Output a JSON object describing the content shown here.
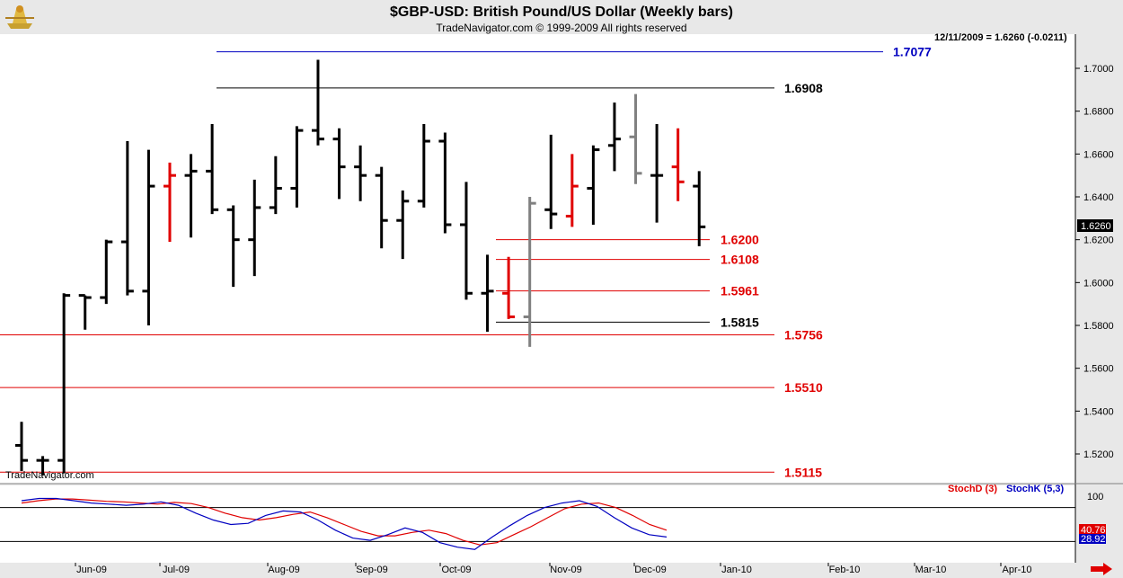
{
  "header": {
    "title": "$GBP-USD:  British Pound/US Dollar  (Weekly bars)",
    "subtitle": "TradeNavigator.com © 1999-2009 All rights reserved",
    "stamp": "12/11/2009 = 1.6260 (-0.0211)"
  },
  "watermark": "TradeNavigator.com",
  "colors": {
    "up_bar": "#000000",
    "down_bar": "#e00000",
    "gray_bar": "#808080",
    "support_line": "#e00000",
    "blue_line": "#0000c0",
    "stochD": "#e00000",
    "stochK": "#0000c0"
  },
  "chart_data": {
    "type": "bar",
    "instrument": "$GBP-USD",
    "ylim": [
      1.51,
      1.71
    ],
    "yticks": [
      "1.7000",
      "1.6800",
      "1.6600",
      "1.6400",
      "1.6200",
      "1.6000",
      "1.5800",
      "1.5600",
      "1.5400",
      "1.5200"
    ],
    "x_labels": [
      "Jun-09",
      "Jul-09",
      "Aug-09",
      "Sep-09",
      "Oct-09",
      "Nov-09",
      "Dec-09",
      "Jan-10",
      "Feb-10",
      "Mar-10",
      "Apr-10"
    ],
    "last_price_label": "1.6260",
    "bars": [
      {
        "date": "2009-05-01",
        "open": 1.524,
        "high": 1.535,
        "low": 1.512,
        "close": 1.517,
        "color": "black"
      },
      {
        "date": "2009-05-08",
        "open": 1.517,
        "high": 1.519,
        "low": 1.51,
        "close": 1.517,
        "color": "black"
      },
      {
        "date": "2009-05-15",
        "open": 1.517,
        "high": 1.595,
        "low": 1.511,
        "close": 1.594,
        "color": "black"
      },
      {
        "date": "2009-05-22",
        "open": 1.594,
        "high": 1.594,
        "low": 1.578,
        "close": 1.593,
        "color": "black"
      },
      {
        "date": "2009-05-29",
        "open": 1.593,
        "high": 1.62,
        "low": 1.59,
        "close": 1.619,
        "color": "black"
      },
      {
        "date": "2009-06-05",
        "open": 1.619,
        "high": 1.666,
        "low": 1.594,
        "close": 1.596,
        "color": "black"
      },
      {
        "date": "2009-06-12",
        "open": 1.596,
        "high": 1.662,
        "low": 1.58,
        "close": 1.645,
        "color": "black"
      },
      {
        "date": "2009-06-19",
        "open": 1.645,
        "high": 1.656,
        "low": 1.619,
        "close": 1.65,
        "color": "red"
      },
      {
        "date": "2009-06-26",
        "open": 1.65,
        "high": 1.66,
        "low": 1.621,
        "close": 1.652,
        "color": "black"
      },
      {
        "date": "2009-07-03",
        "open": 1.652,
        "high": 1.674,
        "low": 1.632,
        "close": 1.634,
        "color": "black"
      },
      {
        "date": "2009-07-10",
        "open": 1.634,
        "high": 1.636,
        "low": 1.598,
        "close": 1.62,
        "color": "black"
      },
      {
        "date": "2009-07-17",
        "open": 1.62,
        "high": 1.648,
        "low": 1.603,
        "close": 1.635,
        "color": "black"
      },
      {
        "date": "2009-07-24",
        "open": 1.635,
        "high": 1.659,
        "low": 1.632,
        "close": 1.644,
        "color": "black"
      },
      {
        "date": "2009-07-31",
        "open": 1.644,
        "high": 1.673,
        "low": 1.635,
        "close": 1.671,
        "color": "black"
      },
      {
        "date": "2009-08-07",
        "open": 1.671,
        "high": 1.704,
        "low": 1.664,
        "close": 1.667,
        "color": "black"
      },
      {
        "date": "2009-08-14",
        "open": 1.667,
        "high": 1.672,
        "low": 1.639,
        "close": 1.654,
        "color": "black"
      },
      {
        "date": "2009-08-21",
        "open": 1.654,
        "high": 1.664,
        "low": 1.638,
        "close": 1.65,
        "color": "black"
      },
      {
        "date": "2009-08-28",
        "open": 1.65,
        "high": 1.654,
        "low": 1.616,
        "close": 1.629,
        "color": "black"
      },
      {
        "date": "2009-09-04",
        "open": 1.629,
        "high": 1.643,
        "low": 1.611,
        "close": 1.638,
        "color": "black"
      },
      {
        "date": "2009-09-11",
        "open": 1.638,
        "high": 1.674,
        "low": 1.635,
        "close": 1.666,
        "color": "black"
      },
      {
        "date": "2009-09-18",
        "open": 1.666,
        "high": 1.67,
        "low": 1.623,
        "close": 1.627,
        "color": "black"
      },
      {
        "date": "2009-09-25",
        "open": 1.627,
        "high": 1.647,
        "low": 1.592,
        "close": 1.595,
        "color": "black"
      },
      {
        "date": "2009-10-02",
        "open": 1.595,
        "high": 1.613,
        "low": 1.577,
        "close": 1.596,
        "color": "black"
      },
      {
        "date": "2009-10-09",
        "open": 1.595,
        "high": 1.612,
        "low": 1.583,
        "close": 1.584,
        "color": "red"
      },
      {
        "date": "2009-10-16",
        "open": 1.584,
        "high": 1.64,
        "low": 1.57,
        "close": 1.637,
        "color": "gray"
      },
      {
        "date": "2009-10-23",
        "open": 1.634,
        "high": 1.669,
        "low": 1.625,
        "close": 1.632,
        "color": "black"
      },
      {
        "date": "2009-10-30",
        "open": 1.631,
        "high": 1.66,
        "low": 1.626,
        "close": 1.645,
        "color": "red"
      },
      {
        "date": "2009-11-06",
        "open": 1.644,
        "high": 1.664,
        "low": 1.627,
        "close": 1.662,
        "color": "black"
      },
      {
        "date": "2009-11-13",
        "open": 1.664,
        "high": 1.684,
        "low": 1.652,
        "close": 1.667,
        "color": "black"
      },
      {
        "date": "2009-11-20",
        "open": 1.668,
        "high": 1.688,
        "low": 1.646,
        "close": 1.651,
        "color": "gray"
      },
      {
        "date": "2009-11-27",
        "open": 1.65,
        "high": 1.674,
        "low": 1.628,
        "close": 1.65,
        "color": "black"
      },
      {
        "date": "2009-12-04",
        "open": 1.654,
        "high": 1.672,
        "low": 1.638,
        "close": 1.647,
        "color": "red"
      },
      {
        "date": "2009-12-11",
        "open": 1.645,
        "high": 1.652,
        "low": 1.617,
        "close": 1.626,
        "color": "black"
      }
    ],
    "levels": [
      {
        "value": 1.7077,
        "label": "1.7077",
        "color": "blue"
      },
      {
        "value": 1.6908,
        "label": "1.6908",
        "color": "black"
      },
      {
        "value": 1.62,
        "label": "1.6200",
        "color": "red"
      },
      {
        "value": 1.6108,
        "label": "1.6108",
        "color": "red"
      },
      {
        "value": 1.5961,
        "label": "1.5961",
        "color": "red"
      },
      {
        "value": 1.5815,
        "label": "1.5815",
        "color": "black"
      },
      {
        "value": 1.5756,
        "label": "1.5756",
        "color": "red"
      },
      {
        "value": 1.551,
        "label": "1.5510",
        "color": "red"
      },
      {
        "value": 1.5115,
        "label": "1.5115",
        "color": "red"
      }
    ],
    "stochastic": {
      "legend_d": "StochD (3)",
      "legend_k": "StochK (5,3)",
      "ytick": "100",
      "last_d": "40.76",
      "last_k": "28.92",
      "stochD": [
        88,
        92,
        95,
        95,
        93,
        91,
        90,
        88,
        86,
        89,
        87,
        80,
        70,
        62,
        58,
        62,
        68,
        72,
        62,
        50,
        38,
        30,
        30,
        36,
        40,
        34,
        22,
        14,
        18,
        32,
        46,
        62,
        78,
        86,
        88,
        80,
        66,
        50,
        40
      ],
      "stochK": [
        92,
        96,
        96,
        92,
        88,
        86,
        84,
        86,
        90,
        84,
        70,
        58,
        50,
        52,
        66,
        74,
        72,
        58,
        40,
        26,
        22,
        32,
        44,
        36,
        18,
        10,
        6,
        28,
        48,
        66,
        80,
        88,
        92,
        82,
        62,
        44,
        32,
        28
      ]
    }
  }
}
